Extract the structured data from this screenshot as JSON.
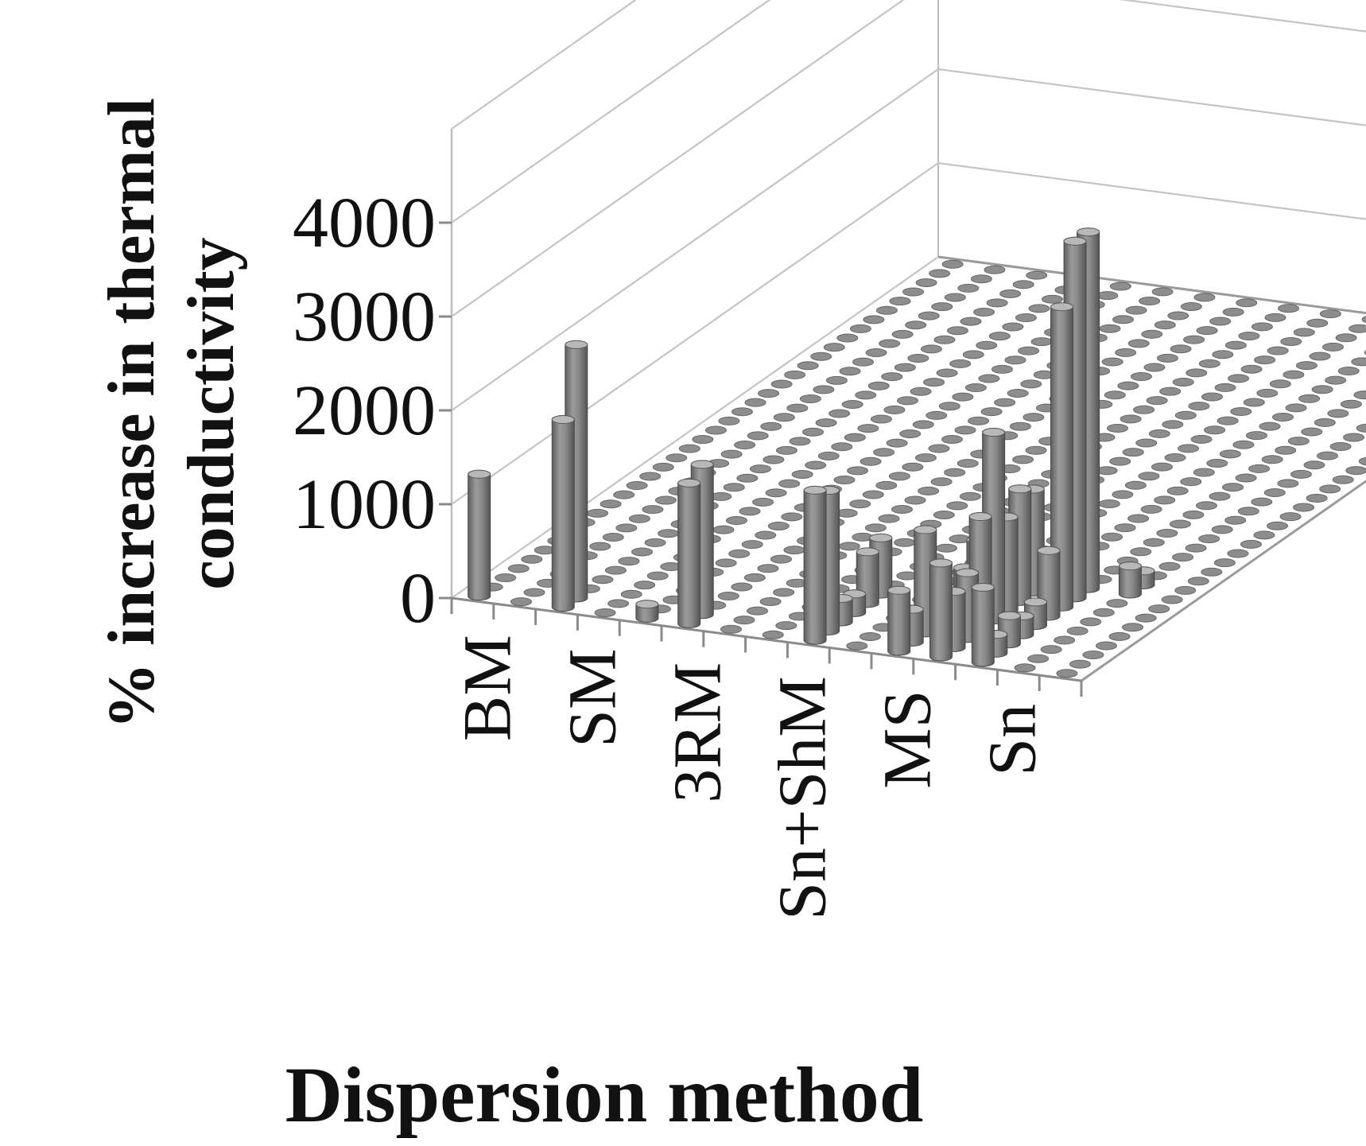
{
  "chart_data": {
    "type": "bar",
    "style": "3d-cylinder",
    "title": "",
    "xlabel": "Dispersion method",
    "ylabel_lines": [
      "% increase in thermal",
      "conductivity"
    ],
    "y_ticks": [
      "0",
      "1000",
      "2000",
      "3000",
      "4000"
    ],
    "ylim": [
      0,
      4000
    ],
    "categories": [
      "BM",
      "SM",
      "3RM",
      "Sn+ShM",
      "MS",
      "Sn"
    ],
    "grid": true,
    "legend": "none",
    "bar_color": "#7f7f7f",
    "values": [
      [
        1300,
        0,
        0,
        0,
        0,
        0,
        0,
        0,
        0,
        0,
        0,
        0,
        0,
        0,
        0,
        0,
        0,
        0,
        0,
        0,
        0,
        0,
        0,
        0,
        0,
        0,
        0,
        0,
        0,
        0,
        0,
        0,
        0,
        0,
        0,
        0,
        0
      ],
      [
        0,
        0,
        0,
        0,
        0,
        0,
        0,
        0,
        0,
        0,
        0,
        0,
        0,
        0,
        0,
        0,
        0,
        0,
        0,
        0,
        0,
        0,
        0,
        0,
        0,
        0,
        0,
        0,
        0,
        0,
        0,
        0,
        0,
        0,
        0,
        0,
        0
      ],
      [
        2000,
        2700,
        0,
        0,
        0,
        0,
        0,
        0,
        0,
        0,
        0,
        0,
        0,
        0,
        0,
        0,
        0,
        0,
        0,
        0,
        0,
        0,
        0,
        0,
        0,
        0,
        0,
        0,
        0,
        0,
        0,
        0,
        0,
        0,
        0,
        0,
        0
      ],
      [
        0,
        0,
        0,
        0,
        0,
        0,
        0,
        0,
        0,
        0,
        0,
        0,
        0,
        0,
        0,
        0,
        0,
        0,
        0,
        0,
        0,
        0,
        0,
        0,
        0,
        0,
        0,
        0,
        0,
        0,
        0,
        0,
        0,
        0,
        0,
        0,
        0
      ],
      [
        150,
        0,
        0,
        0,
        0,
        0,
        0,
        0,
        0,
        0,
        0,
        0,
        0,
        0,
        0,
        0,
        0,
        0,
        0,
        0,
        0,
        0,
        0,
        0,
        0,
        0,
        0,
        0,
        0,
        0,
        0,
        0,
        0,
        0,
        0,
        0,
        0
      ],
      [
        1500,
        1600,
        0,
        0,
        0,
        0,
        0,
        0,
        0,
        0,
        0,
        0,
        0,
        0,
        0,
        0,
        0,
        0,
        0,
        0,
        0,
        0,
        0,
        0,
        0,
        0,
        0,
        0,
        0,
        0,
        0,
        0,
        0,
        0,
        0,
        0,
        0
      ],
      [
        0,
        0,
        0,
        0,
        0,
        0,
        0,
        0,
        0,
        0,
        0,
        0,
        0,
        0,
        0,
        0,
        0,
        0,
        0,
        0,
        0,
        0,
        0,
        0,
        0,
        0,
        0,
        0,
        0,
        0,
        0,
        0,
        0,
        0,
        0,
        0,
        0
      ],
      [
        0,
        0,
        0,
        0,
        0,
        0,
        0,
        0,
        0,
        0,
        0,
        0,
        0,
        0,
        0,
        0,
        0,
        0,
        0,
        0,
        0,
        0,
        0,
        0,
        0,
        0,
        0,
        0,
        0,
        0,
        0,
        0,
        0,
        0,
        0,
        0,
        0
      ],
      [
        1600,
        1500,
        250,
        200,
        550,
        600,
        0,
        0,
        0,
        0,
        0,
        0,
        0,
        0,
        0,
        0,
        0,
        0,
        0,
        0,
        0,
        0,
        0,
        0,
        0,
        0,
        0,
        0,
        0,
        0,
        0,
        0,
        0,
        0,
        0,
        0,
        0
      ],
      [
        0,
        0,
        0,
        0,
        0,
        0,
        0,
        0,
        0,
        0,
        0,
        0,
        0,
        0,
        0,
        0,
        0,
        0,
        0,
        0,
        0,
        0,
        0,
        0,
        0,
        0,
        0,
        0,
        0,
        0,
        0,
        0,
        0,
        0,
        0,
        0,
        0
      ],
      [
        650,
        350,
        1100,
        500,
        0,
        400,
        600,
        550,
        0,
        0,
        0,
        0,
        0,
        0,
        0,
        0,
        0,
        0,
        0,
        0,
        0,
        0,
        0,
        0,
        0,
        0,
        0,
        0,
        0,
        0,
        0,
        0,
        0,
        0,
        0,
        0,
        0
      ],
      [
        1000,
        600,
        700,
        1200,
        2000,
        1000,
        1200,
        1100,
        0,
        0,
        0,
        0,
        0,
        0,
        0,
        0,
        0,
        0,
        0,
        0,
        0,
        0,
        0,
        0,
        0,
        0,
        0,
        0,
        0,
        0,
        0,
        0,
        0,
        0,
        0,
        0,
        0
      ],
      [
        800,
        200,
        300,
        200,
        250,
        700,
        3200,
        3800,
        3800,
        0,
        0,
        0,
        0,
        0,
        0,
        0,
        0,
        0,
        0,
        0,
        0,
        0,
        0,
        0,
        0,
        0,
        0,
        0,
        0,
        0,
        0,
        0,
        0,
        0,
        0,
        0,
        0
      ],
      [
        0,
        0,
        0,
        0,
        0,
        0,
        0,
        0,
        300,
        150,
        0,
        0,
        0,
        0,
        0,
        0,
        0,
        0,
        0,
        0,
        0,
        0,
        0,
        0,
        0,
        0,
        0,
        0,
        0,
        0,
        0,
        0,
        0,
        0,
        0,
        0,
        0
      ],
      [
        0,
        0,
        0,
        0,
        0,
        0,
        0,
        0,
        0,
        0,
        0,
        0,
        0,
        0,
        0,
        0,
        0,
        0,
        0,
        0,
        0,
        0,
        0,
        0,
        0,
        0,
        0,
        0,
        0,
        50,
        80,
        100,
        150,
        350,
        400,
        400,
        400
      ]
    ]
  }
}
